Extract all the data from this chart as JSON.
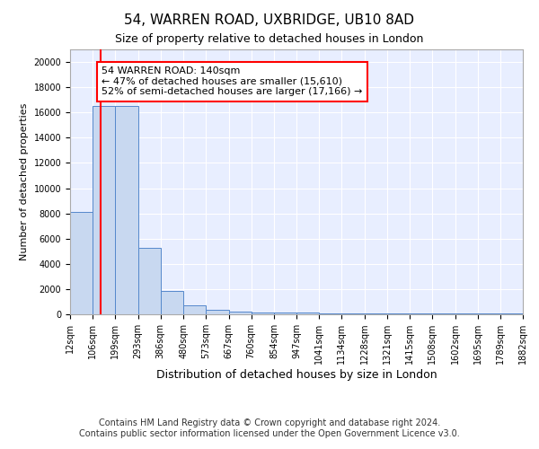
{
  "title1": "54, WARREN ROAD, UXBRIDGE, UB10 8AD",
  "title2": "Size of property relative to detached houses in London",
  "xlabel": "Distribution of detached houses by size in London",
  "ylabel": "Number of detached properties",
  "bin_edges": [
    12,
    106,
    199,
    293,
    386,
    480,
    573,
    667,
    760,
    854,
    947,
    1041,
    1134,
    1228,
    1321,
    1415,
    1508,
    1602,
    1695,
    1789,
    1882
  ],
  "bar_heights": [
    8100,
    16550,
    16550,
    5300,
    1820,
    700,
    360,
    220,
    160,
    130,
    110,
    100,
    90,
    80,
    75,
    70,
    65,
    60,
    55,
    50
  ],
  "bar_color": "#c8d8f0",
  "bar_edge_color": "#5588cc",
  "property_line_x": 140,
  "property_line_color": "#ff0000",
  "annotation_text": "54 WARREN ROAD: 140sqm\n← 47% of detached houses are smaller (15,610)\n52% of semi-detached houses are larger (17,166) →",
  "annotation_box_color": "#ffffff",
  "annotation_box_edge_color": "#ff0000",
  "ylim": [
    0,
    21000
  ],
  "yticks": [
    0,
    2000,
    4000,
    6000,
    8000,
    10000,
    12000,
    14000,
    16000,
    18000,
    20000
  ],
  "footer1": "Contains HM Land Registry data © Crown copyright and database right 2024.",
  "footer2": "Contains public sector information licensed under the Open Government Licence v3.0.",
  "bg_color": "#e8eeff",
  "grid_color": "#ffffff",
  "title1_fontsize": 11,
  "title2_fontsize": 9,
  "xlabel_fontsize": 9,
  "ylabel_fontsize": 8,
  "tick_fontsize": 7,
  "annotation_fontsize": 8,
  "footer_fontsize": 7
}
